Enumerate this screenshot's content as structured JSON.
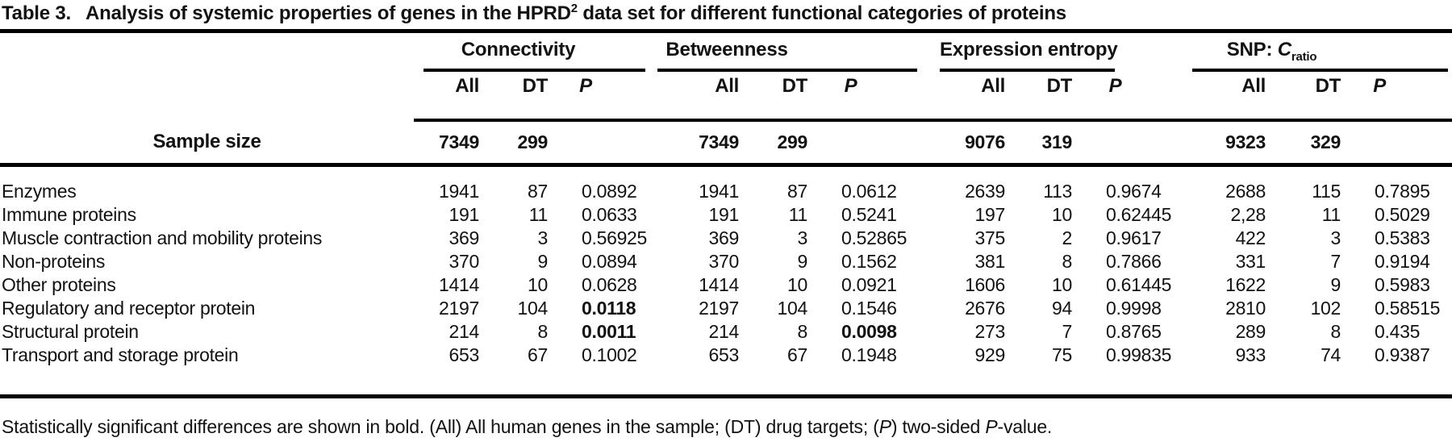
{
  "title": {
    "label": "Table 3.",
    "caption_pre": "Analysis of systemic properties of genes in the HPRD",
    "caption_sup": "2",
    "caption_post": " data set for different functional categories of proteins"
  },
  "groups": [
    {
      "label": "Connectivity"
    },
    {
      "label": "Betweenness"
    },
    {
      "label": "Expression entropy"
    },
    {
      "label_prefix": "SNP: ",
      "label_c": "C",
      "label_sub": "ratio"
    }
  ],
  "subcolumns": {
    "all": "All",
    "dt": "DT",
    "p": "P"
  },
  "sample_size": {
    "label": "Sample size",
    "values": [
      "7349",
      "299",
      "7349",
      "299",
      "9076",
      "319",
      "9323",
      "329"
    ]
  },
  "rows": [
    {
      "label": "Enzymes",
      "values": [
        "1941",
        "87",
        "0.0892",
        "1941",
        "87",
        "0.0612",
        "2639",
        "113",
        "0.9674",
        "2688",
        "115",
        "0.7895"
      ]
    },
    {
      "label": "Immune proteins",
      "values": [
        "191",
        "11",
        "0.0633",
        "191",
        "11",
        "0.5241",
        "197",
        "10",
        "0.62445",
        "2,28",
        "11",
        "0.5029"
      ]
    },
    {
      "label": "Muscle contraction and mobility proteins",
      "values": [
        "369",
        "3",
        "0.56925",
        "369",
        "3",
        "0.52865",
        "375",
        "2",
        "0.9617",
        "422",
        "3",
        "0.5383"
      ]
    },
    {
      "label": "Non-proteins",
      "values": [
        "370",
        "9",
        "0.0894",
        "370",
        "9",
        "0.1562",
        "381",
        "8",
        "0.7866",
        "331",
        "7",
        "0.9194"
      ]
    },
    {
      "label": "Other proteins",
      "values": [
        "1414",
        "10",
        "0.0628",
        "1414",
        "10",
        "0.0921",
        "1606",
        "10",
        "0.61445",
        "1622",
        "9",
        "0.5983"
      ]
    },
    {
      "label": "Regulatory and receptor protein",
      "values": [
        "2197",
        "104",
        "0.0118",
        "2197",
        "104",
        "0.1546",
        "2676",
        "94",
        "0.9998",
        "2810",
        "102",
        "0.58515"
      ]
    },
    {
      "label": "Structural protein",
      "values": [
        "214",
        "8",
        "0.0011",
        "214",
        "8",
        "0.0098",
        "273",
        "7",
        "0.8765",
        "289",
        "8",
        "0.435"
      ]
    },
    {
      "label": "Transport and storage protein",
      "values": [
        "653",
        "67",
        "0.1002",
        "653",
        "67",
        "0.1948",
        "929",
        "75",
        "0.99835",
        "933",
        "74",
        "0.9387"
      ]
    }
  ],
  "significant": [
    [
      5,
      2
    ],
    [
      6,
      2
    ],
    [
      6,
      5
    ]
  ],
  "footnote": {
    "part1": "Statistically significant differences are shown in bold. (All) All human genes in the sample; (DT) drug targets; (",
    "p1": "P",
    "part2": ") two-sided ",
    "p2": "P",
    "part3": "-value."
  }
}
